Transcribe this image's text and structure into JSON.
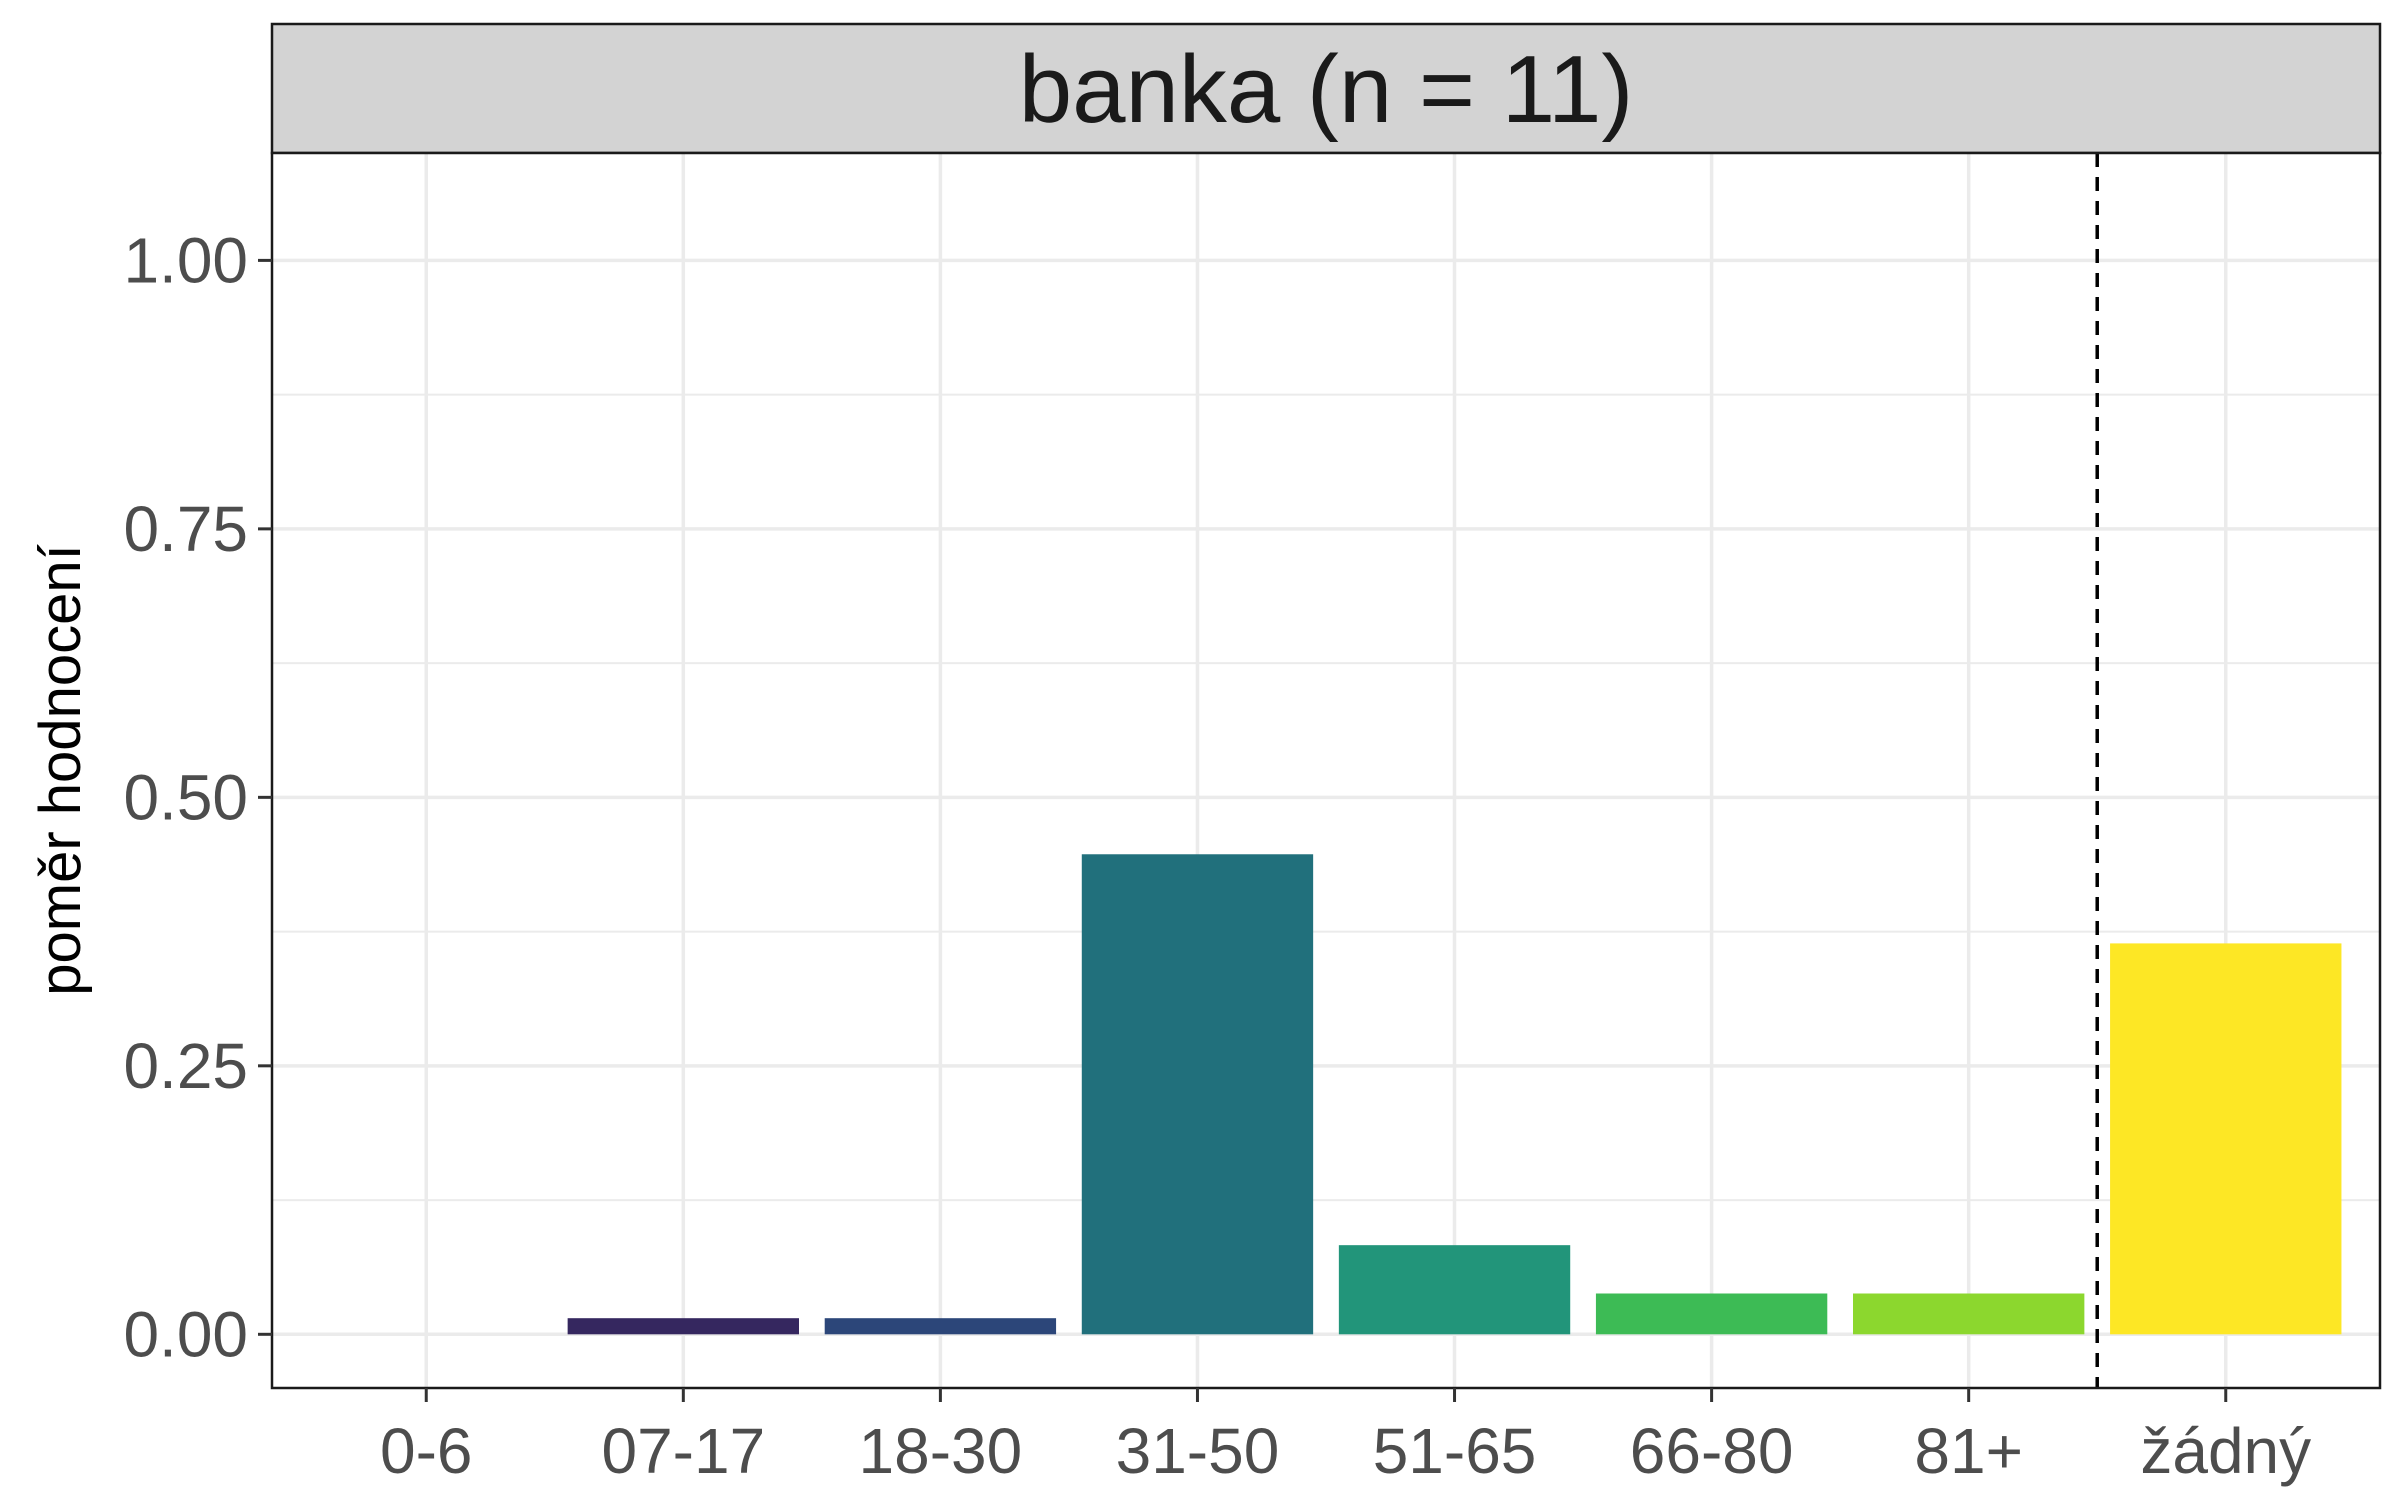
{
  "chart_data": {
    "type": "bar",
    "facet_title": "banka (n = 11)",
    "xlabel": "",
    "ylabel": "poměr hodnocení",
    "ylim": [
      -0.05,
      1.1
    ],
    "yticks": [
      0.0,
      0.25,
      0.5,
      0.75,
      1.0
    ],
    "ytick_labels": [
      "0.00",
      "0.25",
      "0.50",
      "0.75",
      "1.00"
    ],
    "categories": [
      "0-6",
      "07-17",
      "18-30",
      "31-50",
      "51-65",
      "66-80",
      "81+",
      "žádný"
    ],
    "values": [
      0.0,
      0.015,
      0.015,
      0.447,
      0.083,
      0.038,
      0.038,
      0.364
    ],
    "colors": [
      "#440154",
      "#35275f",
      "#2c4679",
      "#21707c",
      "#22957a",
      "#3dbb55",
      "#8cd72e",
      "#fde725"
    ],
    "reference_line": {
      "position": "between 81+ and žádný",
      "style": "dashed"
    },
    "grid": true,
    "legend": "none"
  }
}
